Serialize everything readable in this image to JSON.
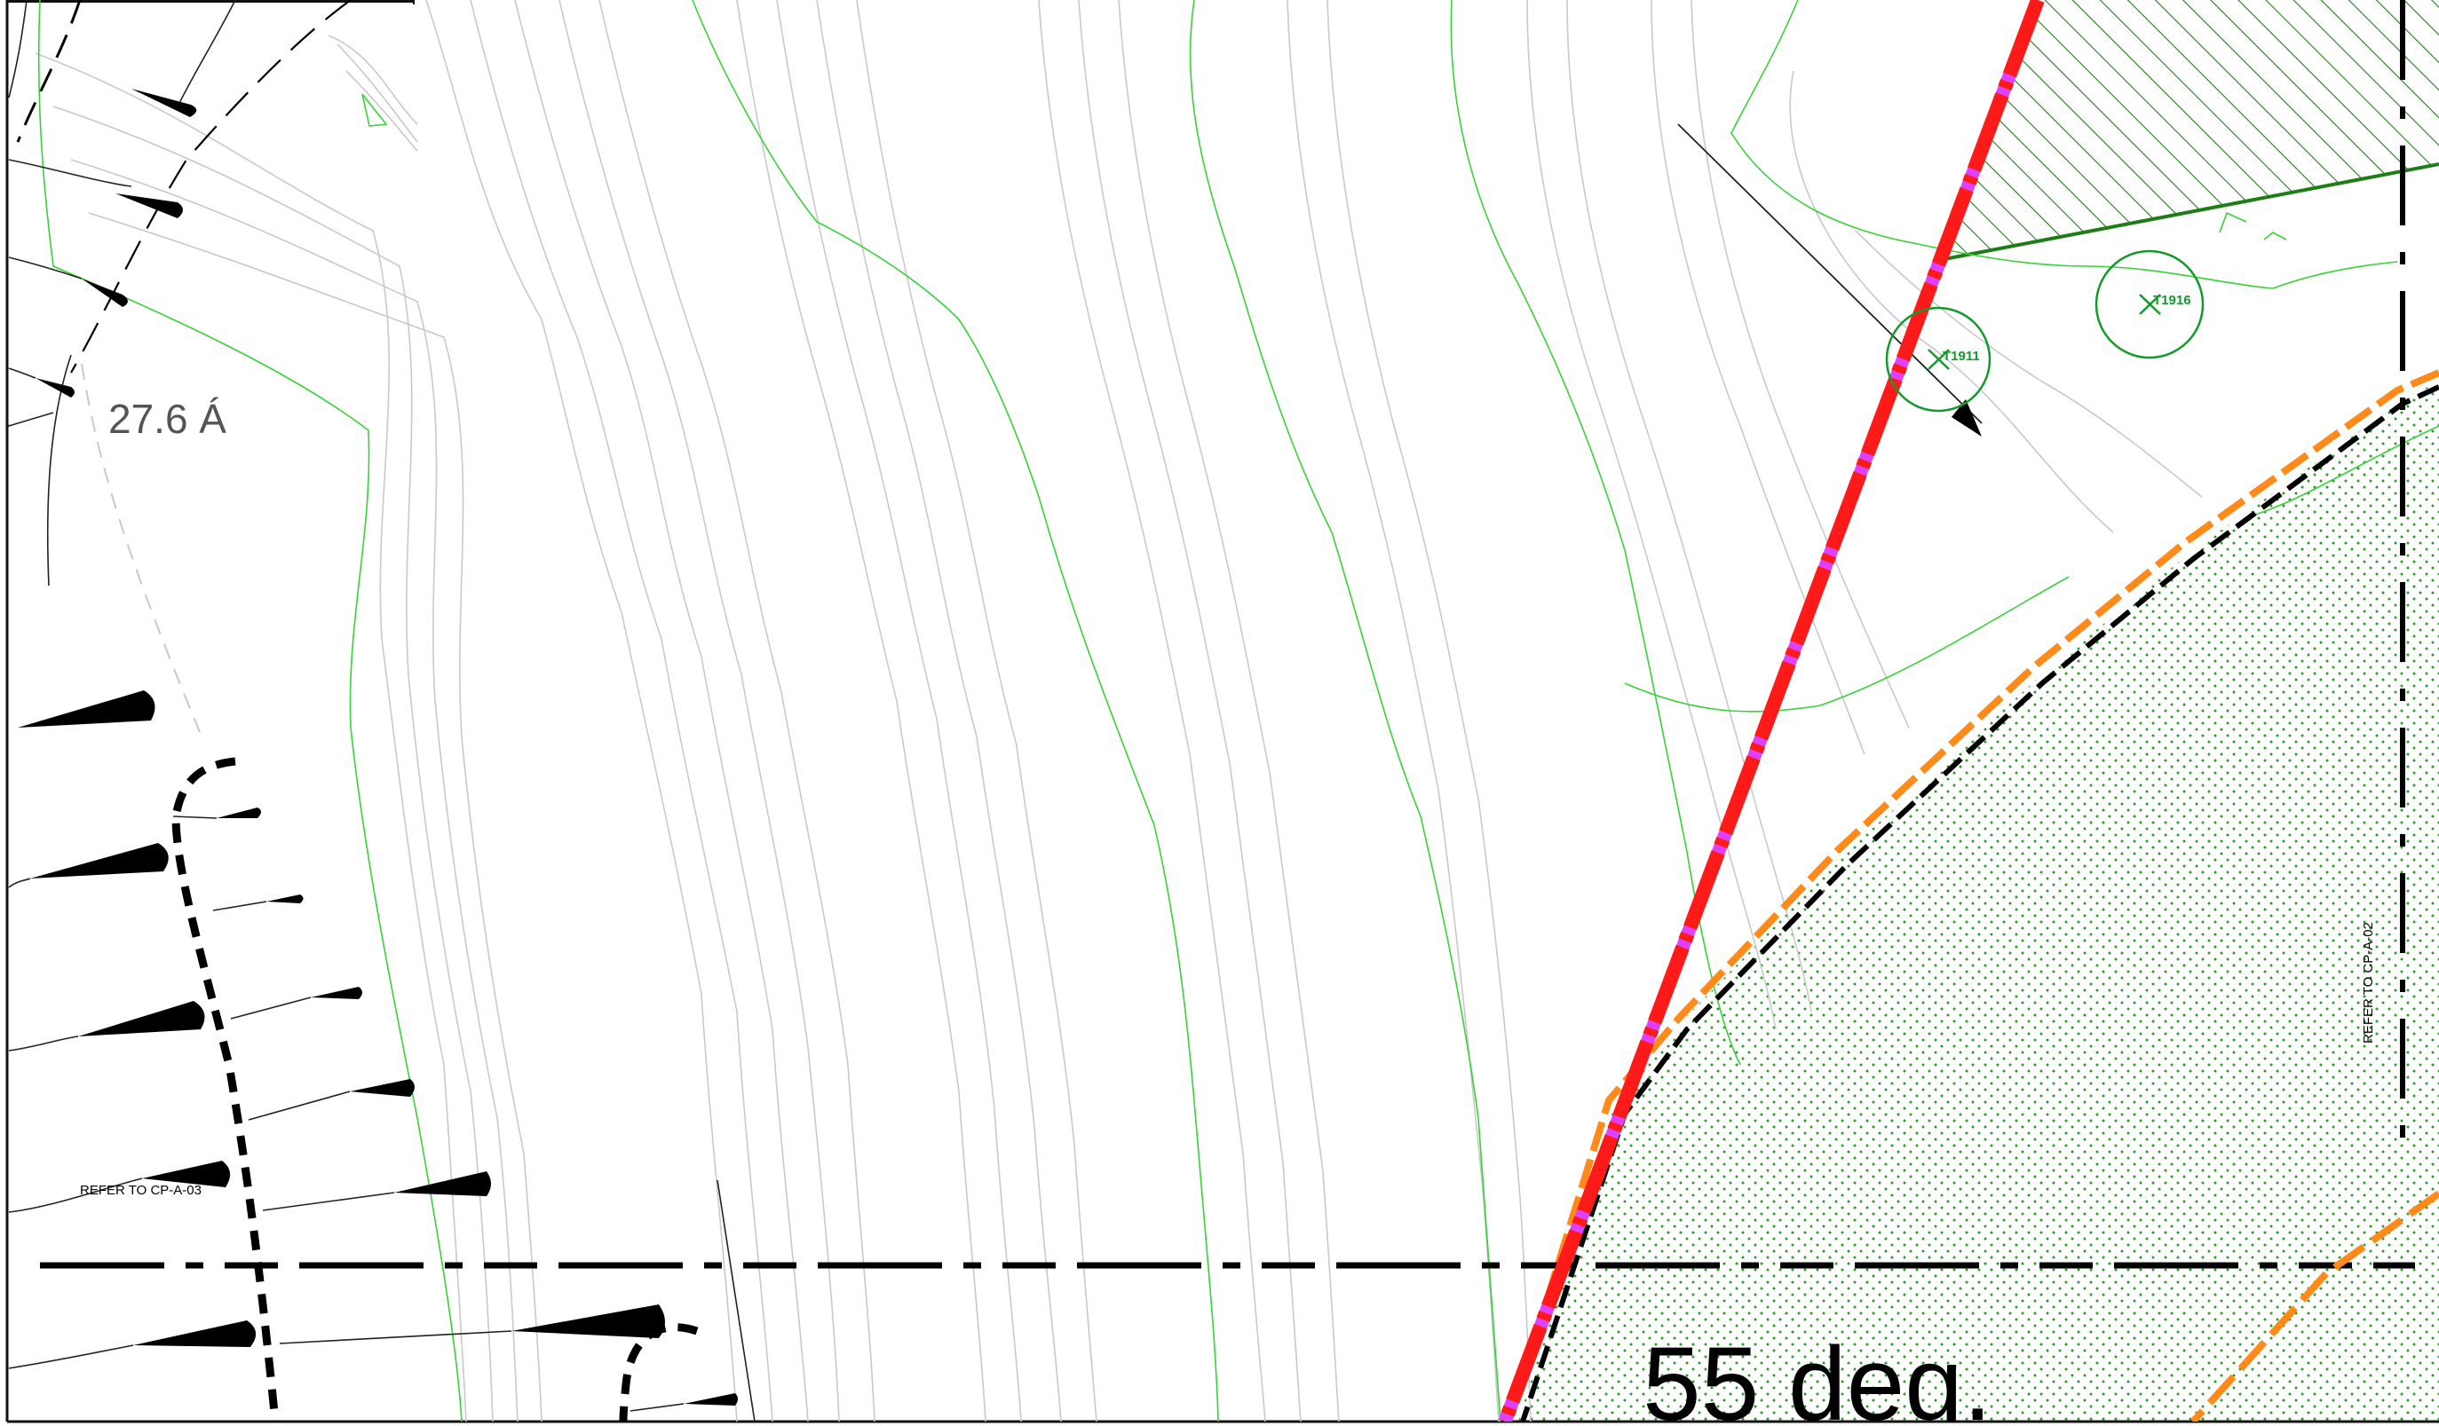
{
  "drawing": {
    "elevation_label": "27.6 Á",
    "slope_label": "55 deg.",
    "sheet_refs": [
      {
        "text": "REFER TO CP-A-03"
      },
      {
        "text": "REFER TO CP-A-02"
      }
    ],
    "trees": [
      {
        "id": "T1911"
      },
      {
        "id": "T1916"
      }
    ],
    "colors": {
      "contour_major": "#39d13a",
      "contour_minor": "#c9c9c9",
      "boundary_red": "#ff1a1a",
      "boundary_magenta": "#e040fb",
      "edge_orange": "#ff8a1a",
      "hatch_green": "#1e7d16",
      "stipple_green": "#2f9a2a",
      "tree_green": "#129a2a",
      "linework": "#000000"
    },
    "icons": [
      "slope-wedge-icon",
      "tree-symbol-icon",
      "north-arrow-icon"
    ]
  }
}
